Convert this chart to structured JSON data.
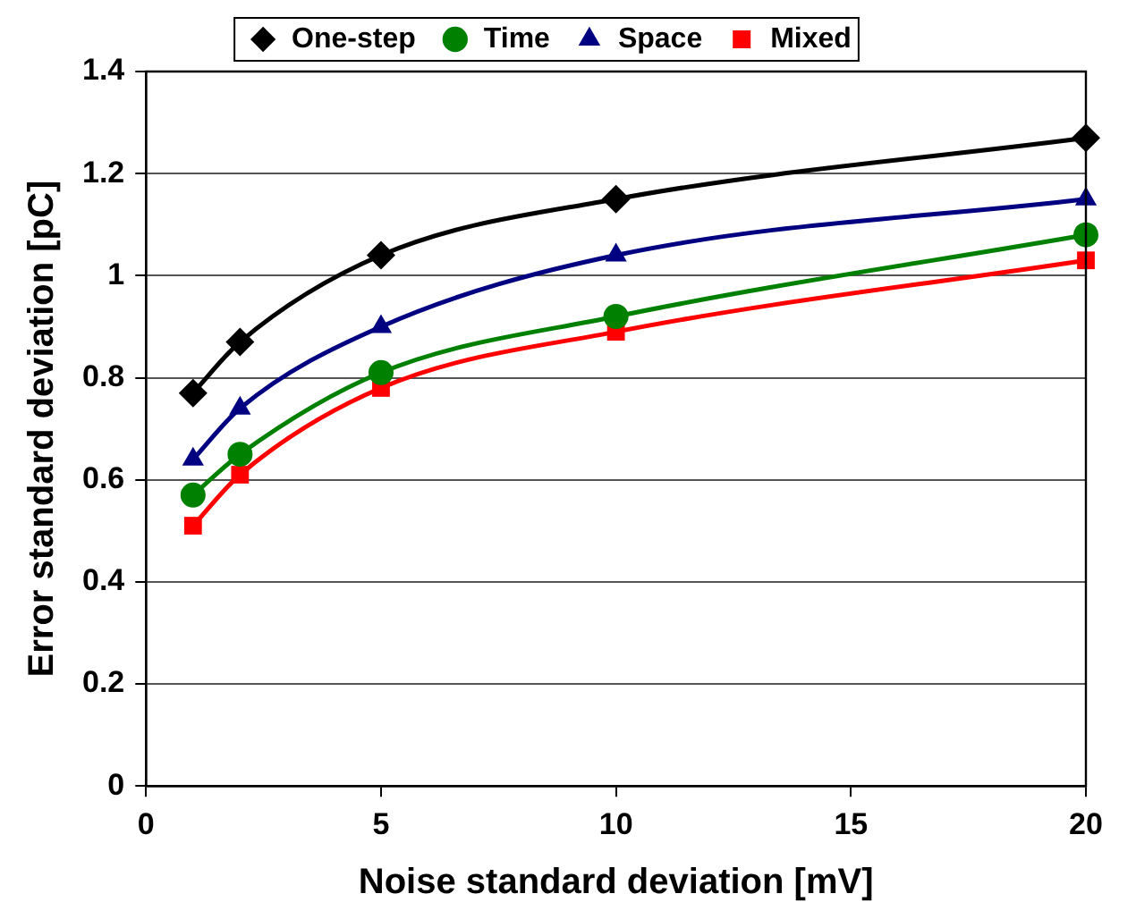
{
  "chart_data": {
    "type": "line",
    "xlabel": "Noise standard deviation [mV]",
    "ylabel": "Error standard deviation [pC]",
    "x": [
      1,
      2,
      5,
      10,
      20
    ],
    "series": [
      {
        "name": "One-step",
        "color": "#000000",
        "marker": "diamond",
        "values": [
          0.77,
          0.87,
          1.04,
          1.15,
          1.27
        ]
      },
      {
        "name": "Time",
        "color": "#008000",
        "marker": "circle",
        "values": [
          0.57,
          0.65,
          0.81,
          0.92,
          1.08
        ]
      },
      {
        "name": "Space",
        "color": "#000080",
        "marker": "triangle",
        "values": [
          0.64,
          0.74,
          0.9,
          1.04,
          1.15
        ]
      },
      {
        "name": "Mixed",
        "color": "#ff0000",
        "marker": "square",
        "values": [
          0.51,
          0.61,
          0.78,
          0.89,
          1.03
        ]
      }
    ],
    "xlim": [
      0,
      20
    ],
    "xticks": [
      0,
      5,
      10,
      15,
      20
    ],
    "ylim": [
      0,
      1.4
    ],
    "yticks": [
      0,
      0.2,
      0.4,
      0.6,
      0.8,
      1,
      1.2,
      1.4
    ],
    "grid": "y",
    "legend": "top",
    "line_style": "solid"
  }
}
